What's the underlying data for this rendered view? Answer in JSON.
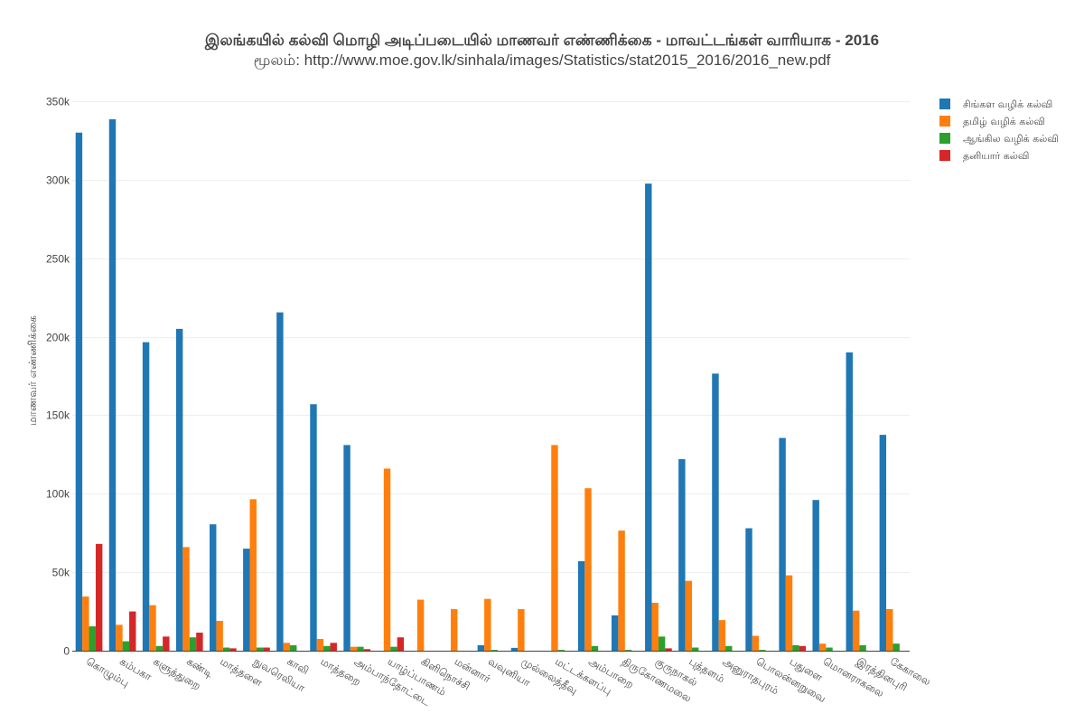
{
  "chart_data": {
    "type": "bar",
    "title": "இலங்கயில் கல்வி மொழி அடிப்படையில் மாணவர் எண்ணிக்கை - மாவட்டங்கள் வாரியாக - 2016",
    "subtitle": "மூலம்: http://www.moe.gov.lk/sinhala/images/Statistics/stat2015_2016/2016_new.pdf",
    "xlabel": "",
    "ylabel": "மாணவர் எண்ணிக்கை",
    "ylim": [
      0,
      350000
    ],
    "yticks": [
      0,
      50000,
      100000,
      150000,
      200000,
      250000,
      300000,
      350000
    ],
    "ytick_labels": [
      "0",
      "50k",
      "100k",
      "150k",
      "200k",
      "250k",
      "300k",
      "350k"
    ],
    "grid": true,
    "legend_position": "top-right",
    "categories": [
      "கொழும்பு",
      "கம்பகா",
      "களுத்துறை",
      "கண்டி",
      "மாத்தளை",
      "நுவரெலியா",
      "காலி",
      "மாத்தறை",
      "அம்பாந்தோட்டை",
      "யாழ்ப்பாணம்",
      "கிளிநொச்சி",
      "மன்னார்",
      "வவுனியா",
      "முல்லைத்தீவு",
      "மட்டக்களப்பு",
      "அம்பாறை",
      "திருகோணமலை",
      "குருநாகல்",
      "புத்தளம்",
      "அனுராதபுரம்",
      "பொலன்னறுவை",
      "பதுளை",
      "மொனராகலை",
      "இரத்தினபுரி",
      "கேகாலை"
    ],
    "series": [
      {
        "name": "சிங்கள வழிக் கல்வி",
        "color": "#1f77b4",
        "values": [
          330000,
          338500,
          196500,
          205000,
          80500,
          65000,
          215500,
          157000,
          131000,
          0,
          0,
          0,
          3500,
          1800,
          0,
          57000,
          22500,
          297500,
          122000,
          176500,
          78000,
          135500,
          96000,
          190000,
          137500
        ]
      },
      {
        "name": "தமிழ் வழிக் கல்வி",
        "color": "#ff7f0e",
        "values": [
          34500,
          16500,
          29000,
          66000,
          19000,
          96500,
          5000,
          7500,
          2500,
          116000,
          32500,
          26500,
          33000,
          26500,
          131000,
          103500,
          76500,
          30500,
          44500,
          19500,
          9500,
          48000,
          4500,
          25500,
          26500
        ]
      },
      {
        "name": "ஆங்கில வழிக் கல்வி",
        "color": "#2ca02c",
        "values": [
          15500,
          6000,
          3000,
          8500,
          2000,
          2000,
          3500,
          3000,
          2500,
          2500,
          0,
          0,
          500,
          0,
          500,
          3000,
          500,
          9000,
          2000,
          3000,
          500,
          3500,
          2000,
          3500,
          4500
        ]
      },
      {
        "name": "தனியார் கல்வி",
        "color": "#d62728",
        "values": [
          68000,
          25000,
          9000,
          11500,
          1500,
          2000,
          0,
          5000,
          1000,
          8500,
          0,
          0,
          0,
          0,
          0,
          0,
          0,
          1500,
          0,
          0,
          0,
          3000,
          0,
          0,
          0
        ]
      }
    ]
  }
}
